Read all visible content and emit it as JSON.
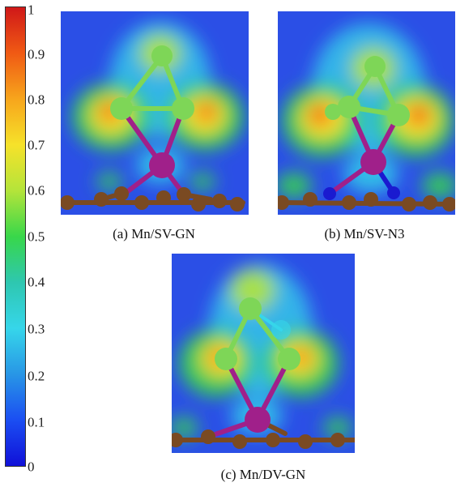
{
  "colorbar": {
    "ticks": [
      "1",
      "0.9",
      "0.8",
      "0.7",
      "0.6",
      "0.5",
      "0.4",
      "0.3",
      "0.2",
      "0.1",
      "0"
    ],
    "colors": [
      "#d01818",
      "#f05a14",
      "#f7a51c",
      "#f6e22a",
      "#b4e43a",
      "#38d74a",
      "#2ec7b0",
      "#36d6ea",
      "#2896e6",
      "#1b4ef2",
      "#1010d8"
    ]
  },
  "panels": [
    {
      "caption": "(a) Mn/SV-GN"
    },
    {
      "caption": "(b) Mn/SV-N3"
    },
    {
      "caption": "(c) Mn/DV-GN"
    }
  ],
  "atom_colors": {
    "metal": "#a0208a",
    "ligand": "#7ed657",
    "carbon": "#7a4a22",
    "nitrogen": "#1a1ad0"
  }
}
